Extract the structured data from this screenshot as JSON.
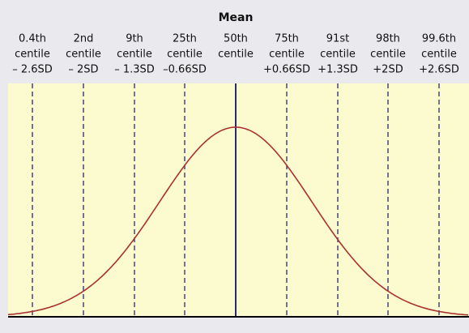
{
  "title": "Mean",
  "markers": [
    {
      "lines": [
        "0.4th",
        "centile",
        "– 2.6SD"
      ]
    },
    {
      "lines": [
        "2nd",
        "centile",
        "– 2SD"
      ]
    },
    {
      "lines": [
        "9th",
        "centile",
        "– 1.3SD"
      ]
    },
    {
      "lines": [
        "25th",
        "centile",
        "–0.66SD"
      ]
    },
    {
      "lines": [
        "50th",
        "centile"
      ]
    },
    {
      "lines": [
        "75th",
        "centile",
        "+0.66SD"
      ]
    },
    {
      "lines": [
        "91st",
        "centile",
        "+1.3SD"
      ]
    },
    {
      "lines": [
        "98th",
        "centile",
        "+2SD"
      ]
    },
    {
      "lines": [
        "99.6th",
        "centile",
        "+2.6SD"
      ]
    }
  ]
}
